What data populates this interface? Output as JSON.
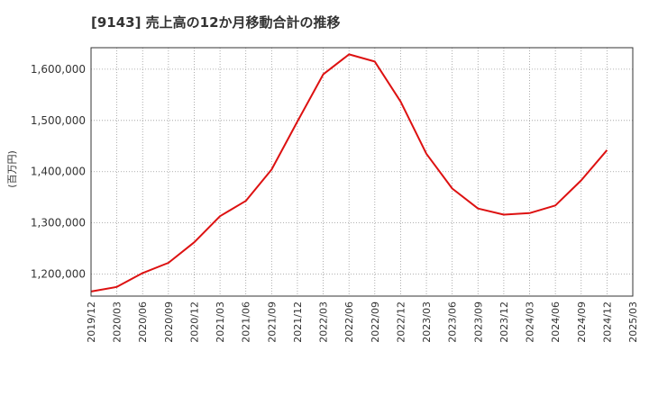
{
  "chart_data": {
    "type": "line",
    "title": "[9143]  売上高の12か月移動合計の推移",
    "xlabel": "",
    "ylabel": "(百万円)",
    "grid": true,
    "legend": "none",
    "ylim": [
      1157000,
      1642000
    ],
    "x_tick_labels": [
      "2019/12",
      "2020/03",
      "2020/06",
      "2020/09",
      "2020/12",
      "2021/03",
      "2021/06",
      "2021/09",
      "2021/12",
      "2022/03",
      "2022/06",
      "2022/09",
      "2022/12",
      "2023/03",
      "2023/06",
      "2023/09",
      "2023/12",
      "2024/03",
      "2024/06",
      "2024/09",
      "2024/12",
      "2025/03"
    ],
    "y_ticks": [
      {
        "value": 1200000,
        "label": "1,200,000"
      },
      {
        "value": 1300000,
        "label": "1,300,000"
      },
      {
        "value": 1400000,
        "label": "1,400,000"
      },
      {
        "value": 1500000,
        "label": "1,500,000"
      },
      {
        "value": 1600000,
        "label": "1,600,000"
      }
    ],
    "series": [
      {
        "name": "売上高の12か月移動合計",
        "color": "#dd1111",
        "x": [
          "2019/12",
          "2020/03",
          "2020/06",
          "2020/09",
          "2020/12",
          "2021/03",
          "2021/06",
          "2021/09",
          "2021/12",
          "2022/03",
          "2022/06",
          "2022/09",
          "2022/12",
          "2023/03",
          "2023/06",
          "2023/09",
          "2023/12",
          "2024/03",
          "2024/06",
          "2024/09",
          "2024/12"
        ],
        "values": [
          1166000,
          1175000,
          1202000,
          1222000,
          1262000,
          1313000,
          1343000,
          1404000,
          1498000,
          1590000,
          1629000,
          1615000,
          1537000,
          1435000,
          1367000,
          1328000,
          1316000,
          1319000,
          1334000,
          1383000,
          1442000
        ]
      }
    ]
  }
}
